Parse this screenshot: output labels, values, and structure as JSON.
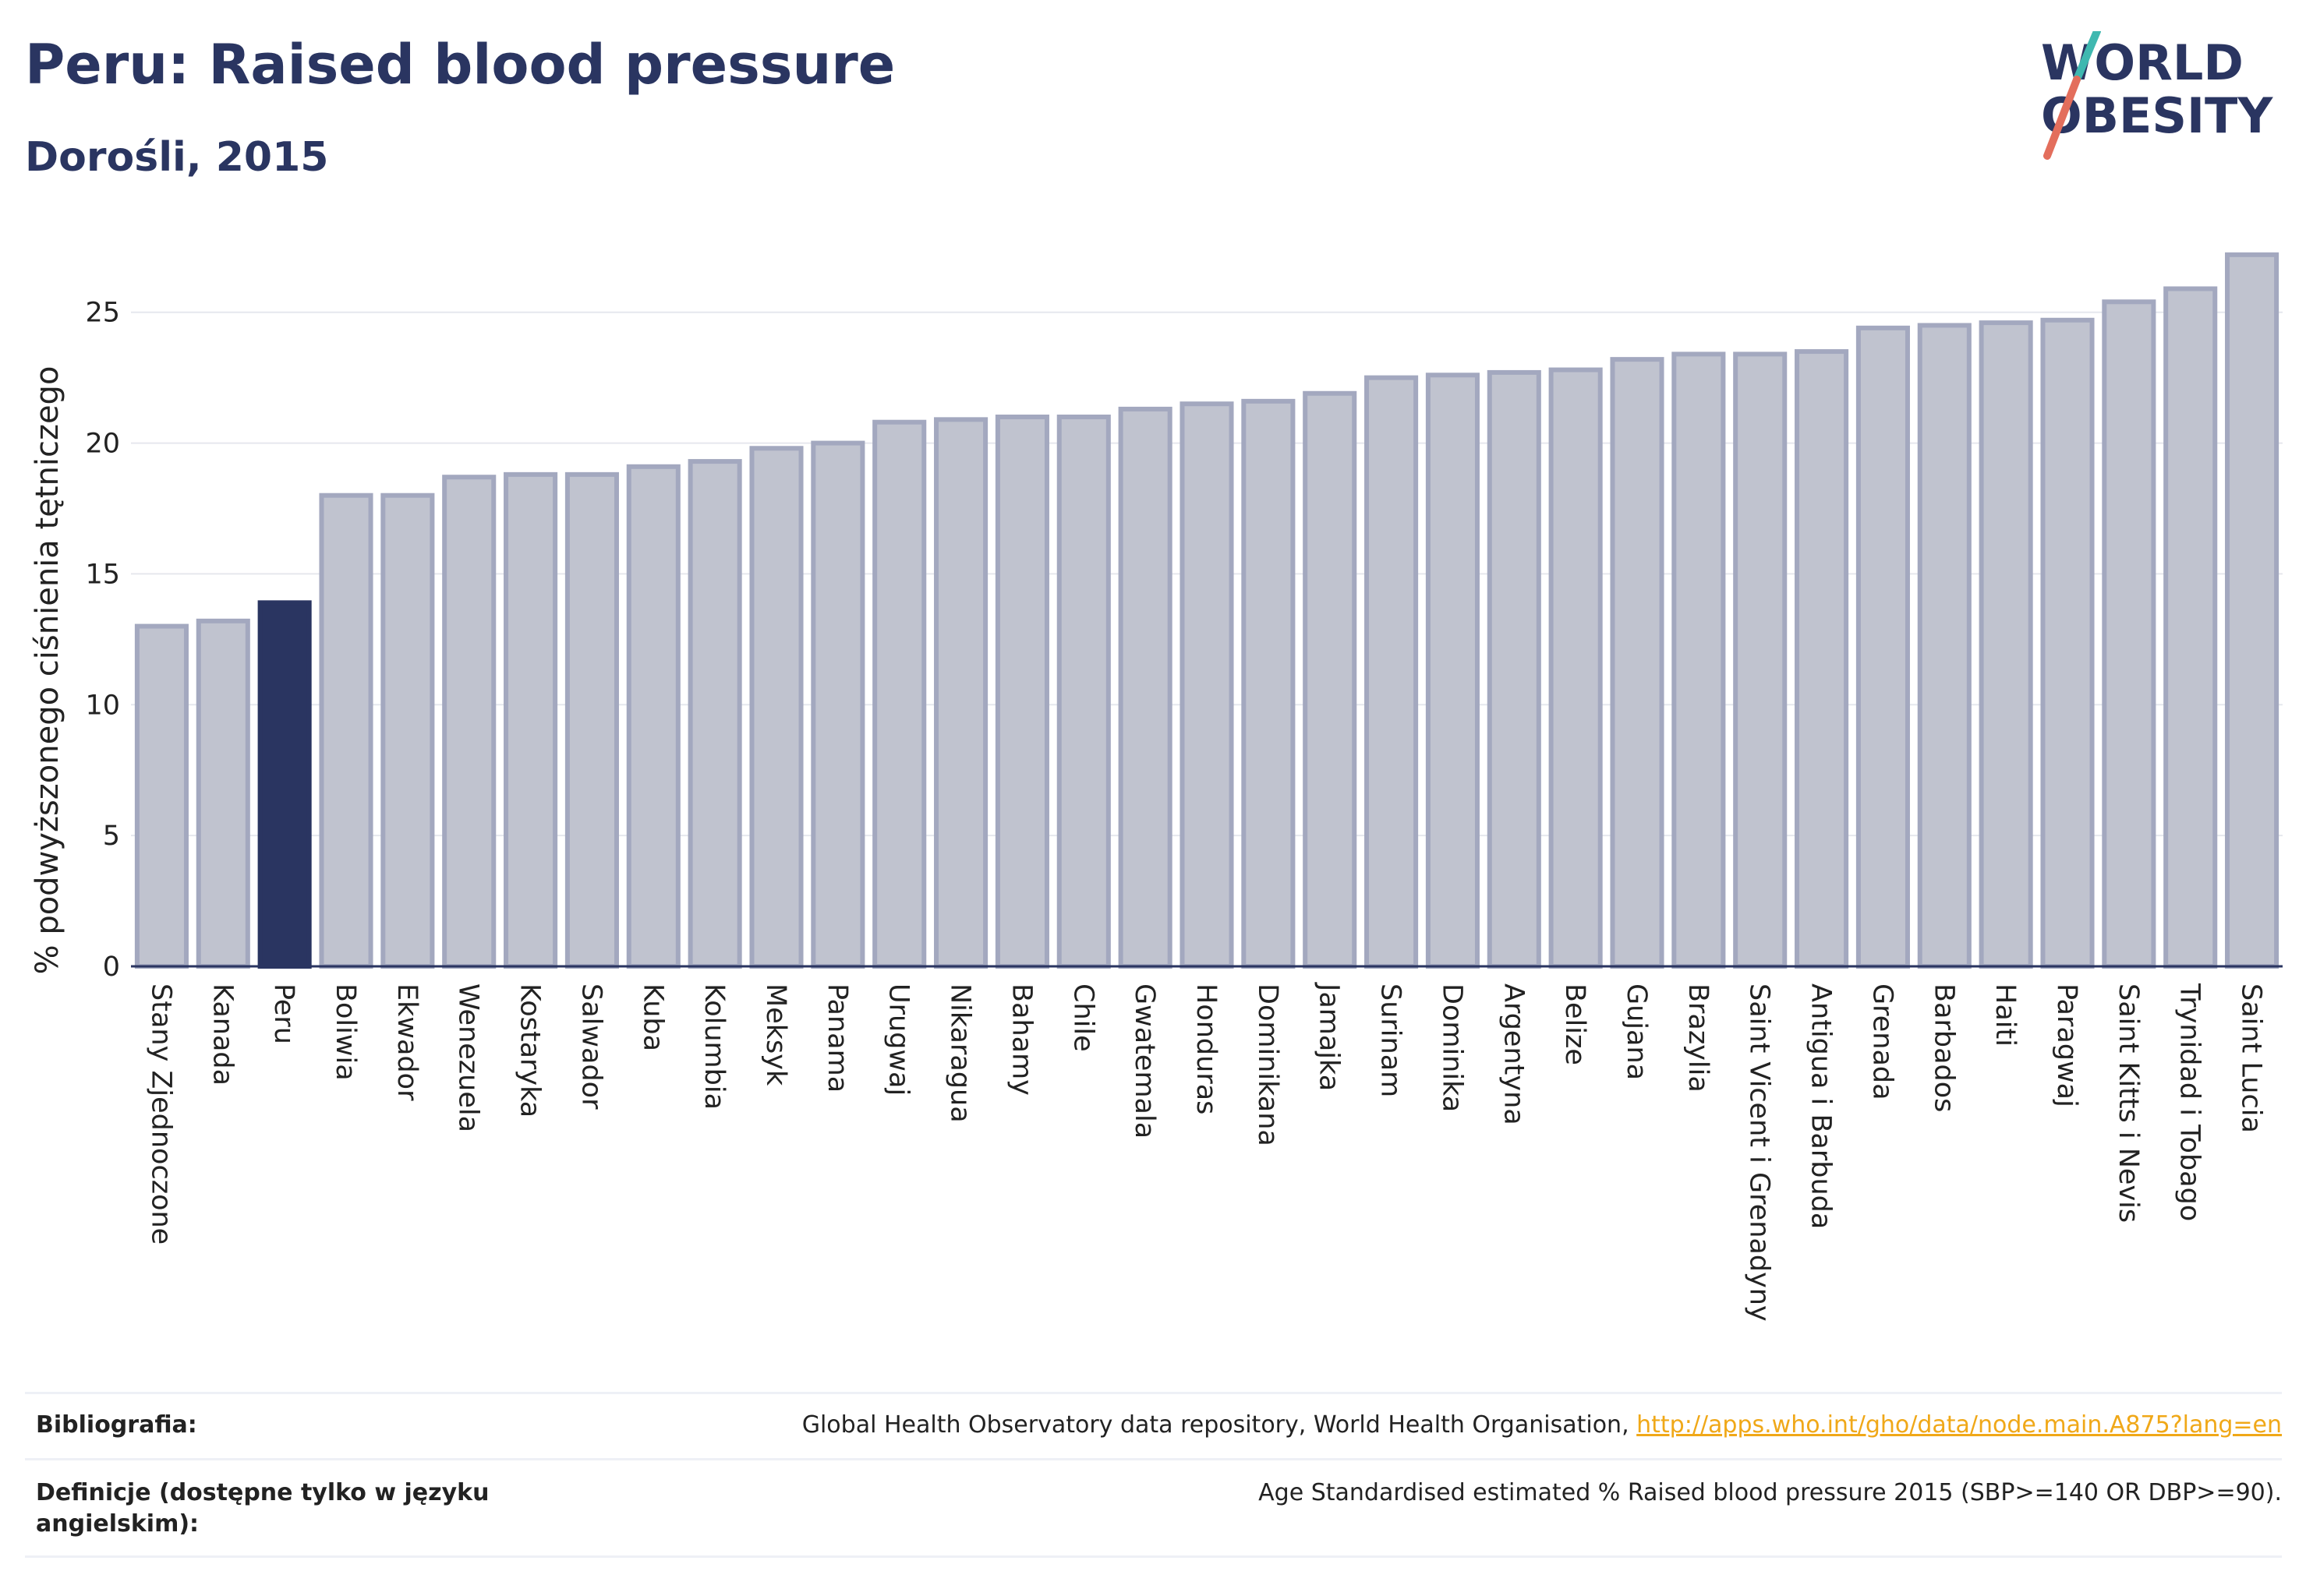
{
  "header": {
    "title": "Peru: Raised blood pressure",
    "subtitle": "Dorośli, 2015"
  },
  "logo": {
    "line1": "WORLD",
    "line2": "OBESITY"
  },
  "chart_data": {
    "type": "bar",
    "ylabel": "% podwyższonego ciśnienia tętniczego",
    "ylim": [
      0,
      28
    ],
    "yticks": [
      0,
      5,
      10,
      15,
      20,
      25
    ],
    "grid": true,
    "highlight": "Peru",
    "colors": {
      "bar": "#c0c3cf",
      "bar_edge": "#a3a8bf",
      "highlight": "#2a3561",
      "axis": "#2a3561",
      "grid": "#e6e8ee"
    },
    "categories": [
      "Stany Zjednoczone",
      "Kanada",
      "Peru",
      "Boliwia",
      "Ekwador",
      "Wenezuela",
      "Kostaryka",
      "Salwador",
      "Kuba",
      "Kolumbia",
      "Meksyk",
      "Panama",
      "Urugwaj",
      "Nikaragua",
      "Bahamy",
      "Chile",
      "Gwatemala",
      "Honduras",
      "Dominikana",
      "Jamajka",
      "Surinam",
      "Dominika",
      "Argentyna",
      "Belize",
      "Gujana",
      "Brazylia",
      "Saint Vicent i Grenadyny",
      "Antigua i Barbuda",
      "Grenada",
      "Barbados",
      "Haiti",
      "Paragwaj",
      "Saint Kitts i Nevis",
      "Trynidad i Tobago",
      "Saint Lucia"
    ],
    "values": [
      13.0,
      13.2,
      13.9,
      18.0,
      18.0,
      18.7,
      18.8,
      18.8,
      19.1,
      19.3,
      19.8,
      20.0,
      20.8,
      20.9,
      21.0,
      21.0,
      21.3,
      21.5,
      21.6,
      21.9,
      22.5,
      22.6,
      22.7,
      22.8,
      23.2,
      23.4,
      23.4,
      23.5,
      24.4,
      24.5,
      24.6,
      24.7,
      25.4,
      25.9,
      27.2
    ]
  },
  "footer": {
    "bibliography_label": "Bibliografia:",
    "bibliography_text": "Global Health Observatory data repository, World Health Organisation, ",
    "bibliography_link": "http://apps.who.int/gho/data/node.main.A875?lang=en",
    "definitions_label": "Definicje (dostępne tylko w języku angielskim):",
    "definitions_text": "Age Standardised estimated % Raised blood pressure 2015 (SBP>=140 OR DBP>=90)."
  }
}
